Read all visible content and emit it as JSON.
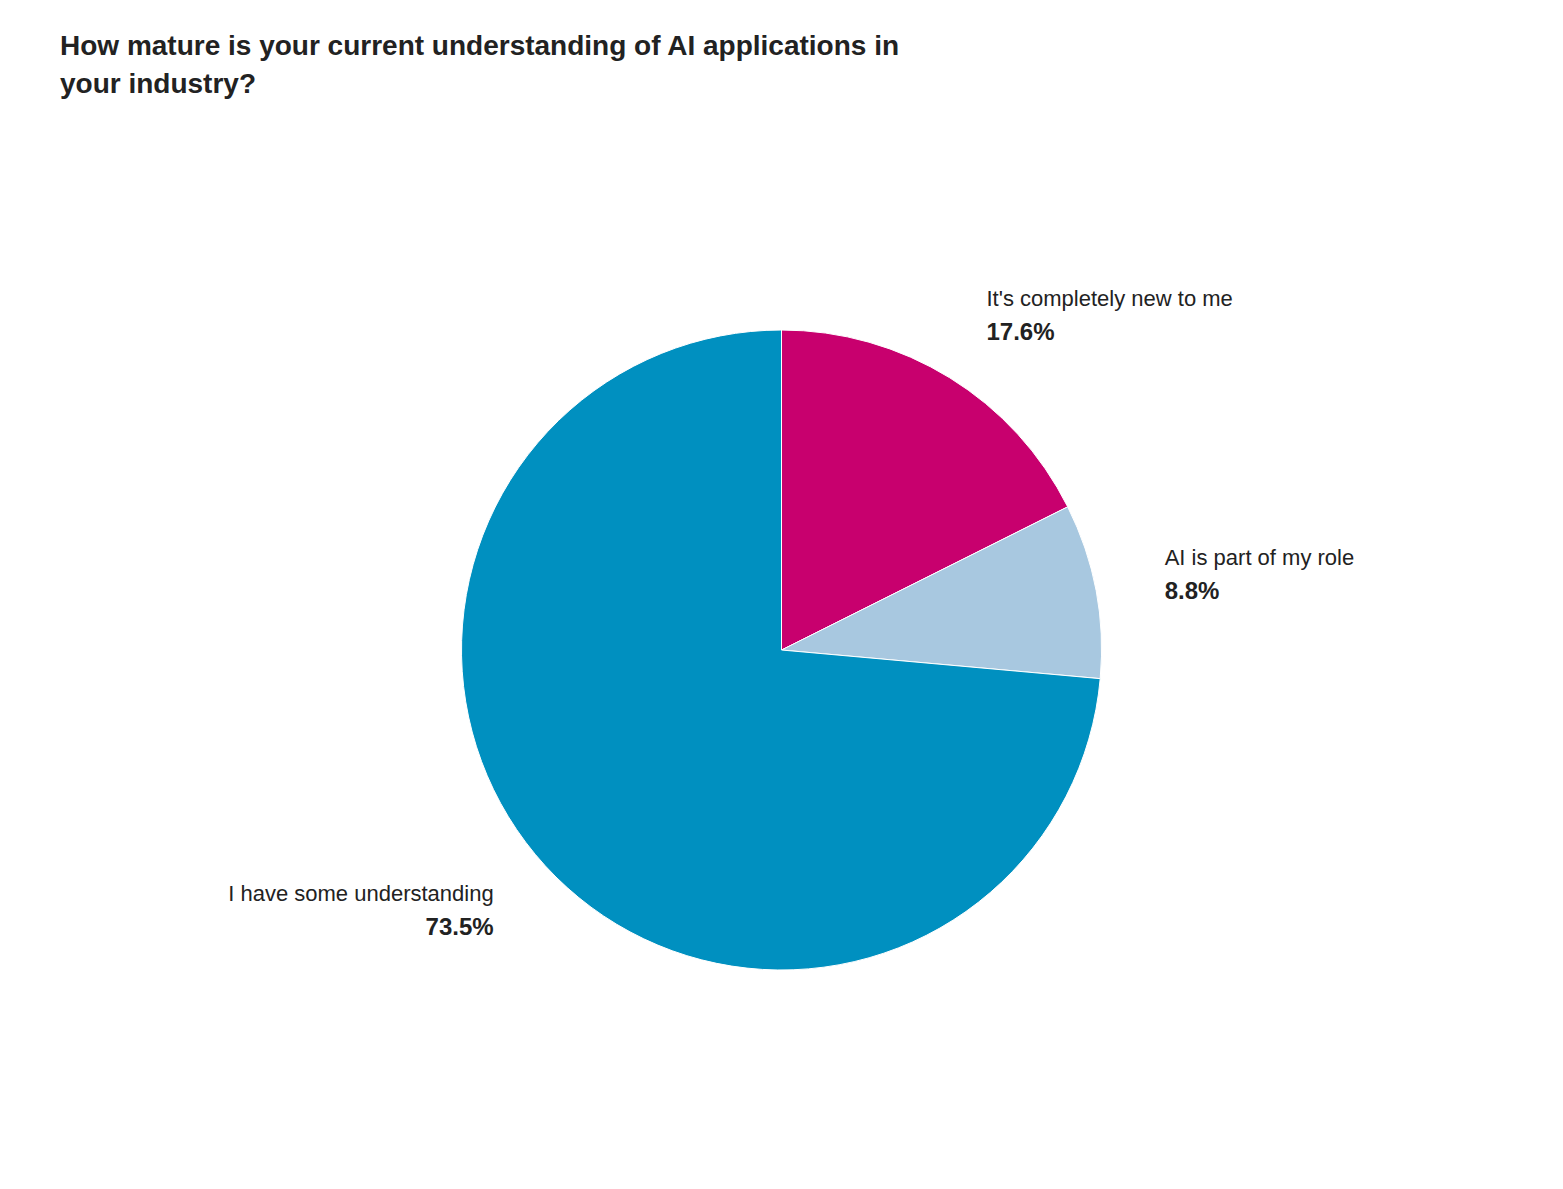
{
  "chart_data": {
    "type": "pie",
    "title": "How mature is your current understanding of AI applications in\nyour industry?",
    "categories": [
      "It's completely new to me",
      "AI is part of my role",
      "I have some understanding"
    ],
    "values": [
      17.6,
      8.8,
      73.5
    ],
    "value_labels": [
      "17.6%",
      "8.8%",
      "73.5%"
    ],
    "colors": [
      "#C8006E",
      "#A8C8E0",
      "#0090C0"
    ],
    "data_labels": true
  }
}
